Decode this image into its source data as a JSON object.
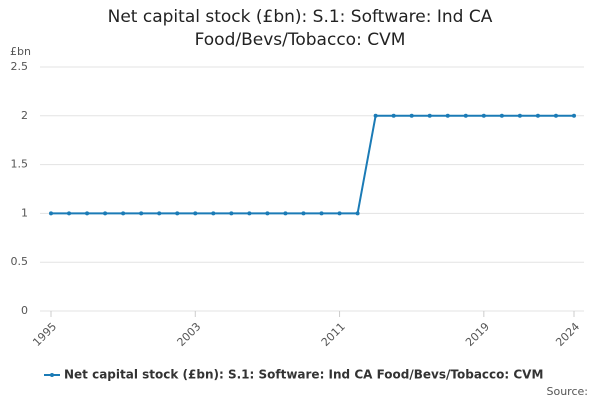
{
  "chart_data": {
    "type": "line",
    "title": "Net capital stock (£bn): S.1: Software: Ind CA Food/Bevs/Tobacco: CVM",
    "y_label": "£bn",
    "source": "Source:",
    "x": [
      1995,
      1996,
      1997,
      1998,
      1999,
      2000,
      2001,
      2002,
      2003,
      2004,
      2005,
      2006,
      2007,
      2008,
      2009,
      2010,
      2011,
      2012,
      2013,
      2014,
      2015,
      2016,
      2017,
      2018,
      2019,
      2020,
      2021,
      2022,
      2023,
      2024
    ],
    "series": [
      {
        "name": "Net capital stock (£bn): S.1: Software: Ind CA Food/Bevs/Tobacco: CVM",
        "color": "#1b7bb6",
        "values": [
          1,
          1,
          1,
          1,
          1,
          1,
          1,
          1,
          1,
          1,
          1,
          1,
          1,
          1,
          1,
          1,
          1,
          1,
          2,
          2,
          2,
          2,
          2,
          2,
          2,
          2,
          2,
          2,
          2,
          2
        ]
      }
    ],
    "xlim": [
      1995,
      2024
    ],
    "xticks": [
      1995,
      2003,
      2011,
      2019,
      2024
    ],
    "ylim": [
      0,
      2.5
    ],
    "yticks": [
      0,
      0.5,
      1,
      1.5,
      2,
      2.5
    ],
    "grid": true
  }
}
